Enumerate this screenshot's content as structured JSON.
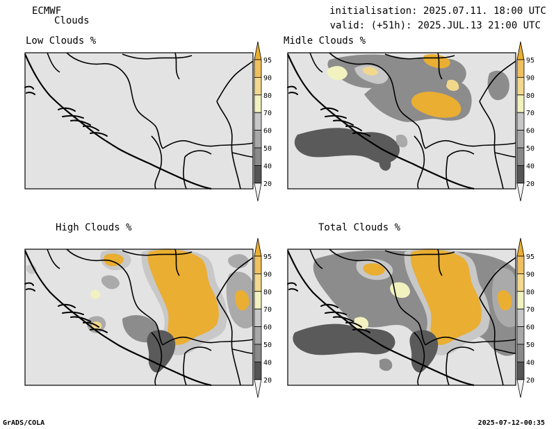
{
  "header": {
    "model": "ECMWF",
    "product": "Clouds",
    "init_label": "initialisation: 2025.07.11. 18:00 UTC",
    "valid_label": "valid: (+51h): 2025.JUL.13 21:00 UTC"
  },
  "panels": [
    {
      "id": "low",
      "title": "Low Clouds %"
    },
    {
      "id": "middle",
      "title": "Midle Clouds %"
    },
    {
      "id": "high",
      "title": "High Clouds %"
    },
    {
      "id": "total",
      "title": "Total Clouds %"
    }
  ],
  "colorbar": {
    "levels": [
      "20",
      "40",
      "50",
      "60",
      "70",
      "80",
      "90",
      "95"
    ],
    "colors": [
      "#f2f2f2",
      "#555555",
      "#8a8a8a",
      "#a8a8a8",
      "#c8c8c8",
      "#f2f2c0",
      "#f3d98e",
      "#f0c060",
      "#e9ae32"
    ]
  },
  "map_colors": {
    "land": "#e3e3e3",
    "c40": "#5a5a5a",
    "c50": "#8c8c8c",
    "c60": "#aaaaaa",
    "c70": "#c8c8c8",
    "c80": "#f2f2c0",
    "c90": "#f2d88c",
    "c95": "#e9ae32"
  },
  "footer": {
    "left": "GrADS/COLA",
    "right": "2025-07-12-00:35"
  }
}
